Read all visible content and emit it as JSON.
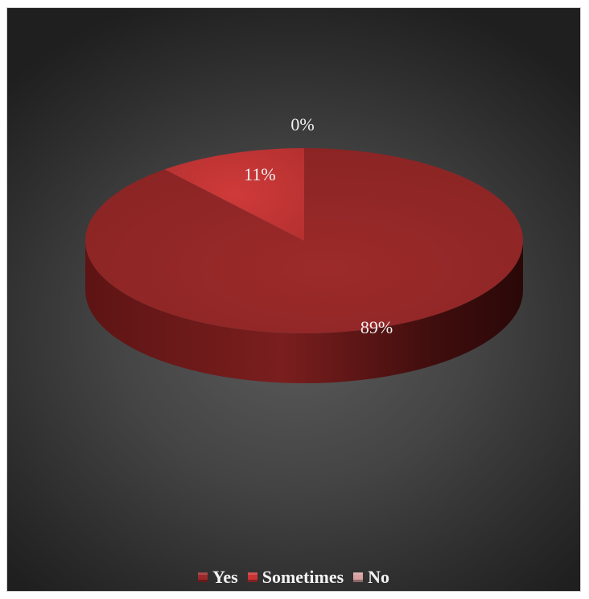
{
  "chart_data": {
    "type": "pie",
    "categories": [
      "Yes",
      "Sometimes",
      "No"
    ],
    "values": [
      89,
      11,
      0
    ],
    "data_labels": [
      "89%",
      "11%",
      "0%"
    ],
    "colors": [
      "#9a2a2a",
      "#c93434",
      "#d9a0a0"
    ],
    "legend_position": "bottom",
    "style": "3d"
  }
}
